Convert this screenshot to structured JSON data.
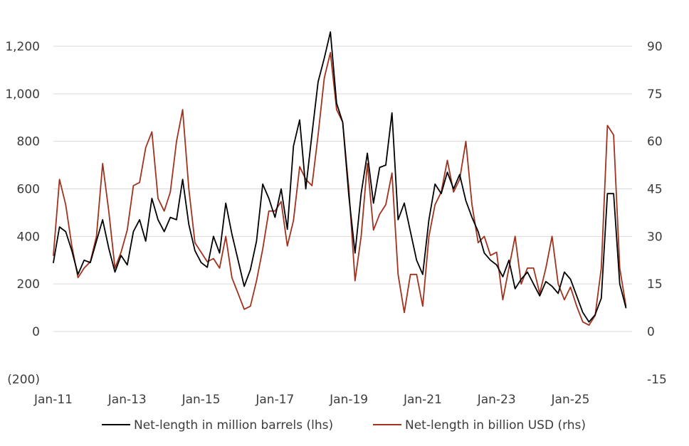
{
  "chart_data": {
    "type": "line",
    "title": "",
    "xlabel": "",
    "ylabel_left": "",
    "ylabel_right": "",
    "grid": true,
    "legend_position": "bottom",
    "x_range": [
      "2011-01",
      "2026-09"
    ],
    "x_ticks": [
      "Jan-11",
      "Jan-13",
      "Jan-15",
      "Jan-17",
      "Jan-19",
      "Jan-21",
      "Jan-23",
      "Jan-25"
    ],
    "y_left": {
      "range": [
        -200,
        1300
      ],
      "ticks": [
        -200,
        0,
        200,
        400,
        600,
        800,
        1000,
        1200
      ],
      "tick_labels": [
        "(200)",
        "0",
        "200",
        "400",
        "600",
        "800",
        "1,000",
        "1,200"
      ]
    },
    "y_right": {
      "range": [
        -15,
        97.5
      ],
      "ticks": [
        -15,
        0,
        15,
        30,
        45,
        60,
        75,
        90
      ],
      "tick_labels": [
        "-15",
        "0",
        "15",
        "30",
        "45",
        "60",
        "75",
        "90"
      ]
    },
    "series": [
      {
        "name": "Net-length in million barrels (lhs)",
        "axis": "left",
        "color": "#000000",
        "points": [
          [
            "2011-01",
            290
          ],
          [
            "2011-03",
            440
          ],
          [
            "2011-05",
            420
          ],
          [
            "2011-07",
            340
          ],
          [
            "2011-09",
            240
          ],
          [
            "2011-11",
            300
          ],
          [
            "2012-01",
            290
          ],
          [
            "2012-03",
            380
          ],
          [
            "2012-05",
            470
          ],
          [
            "2012-07",
            350
          ],
          [
            "2012-09",
            250
          ],
          [
            "2012-11",
            320
          ],
          [
            "2013-01",
            280
          ],
          [
            "2013-03",
            420
          ],
          [
            "2013-05",
            470
          ],
          [
            "2013-07",
            380
          ],
          [
            "2013-09",
            560
          ],
          [
            "2013-11",
            470
          ],
          [
            "2014-01",
            420
          ],
          [
            "2014-03",
            480
          ],
          [
            "2014-05",
            470
          ],
          [
            "2014-07",
            640
          ],
          [
            "2014-09",
            450
          ],
          [
            "2014-11",
            340
          ],
          [
            "2015-01",
            290
          ],
          [
            "2015-03",
            270
          ],
          [
            "2015-05",
            400
          ],
          [
            "2015-07",
            330
          ],
          [
            "2015-09",
            540
          ],
          [
            "2015-11",
            410
          ],
          [
            "2016-01",
            300
          ],
          [
            "2016-03",
            190
          ],
          [
            "2016-05",
            260
          ],
          [
            "2016-07",
            380
          ],
          [
            "2016-09",
            620
          ],
          [
            "2016-11",
            560
          ],
          [
            "2017-01",
            480
          ],
          [
            "2017-03",
            600
          ],
          [
            "2017-05",
            430
          ],
          [
            "2017-07",
            780
          ],
          [
            "2017-09",
            890
          ],
          [
            "2017-11",
            600
          ],
          [
            "2018-01",
            830
          ],
          [
            "2018-03",
            1050
          ],
          [
            "2018-05",
            1150
          ],
          [
            "2018-07",
            1260
          ],
          [
            "2018-09",
            960
          ],
          [
            "2018-11",
            880
          ],
          [
            "2019-01",
            570
          ],
          [
            "2019-03",
            330
          ],
          [
            "2019-05",
            580
          ],
          [
            "2019-07",
            750
          ],
          [
            "2019-09",
            540
          ],
          [
            "2019-11",
            690
          ],
          [
            "2020-01",
            700
          ],
          [
            "2020-03",
            920
          ],
          [
            "2020-05",
            470
          ],
          [
            "2020-07",
            540
          ],
          [
            "2020-09",
            420
          ],
          [
            "2020-11",
            300
          ],
          [
            "2021-01",
            240
          ],
          [
            "2021-03",
            470
          ],
          [
            "2021-05",
            620
          ],
          [
            "2021-07",
            580
          ],
          [
            "2021-09",
            670
          ],
          [
            "2021-11",
            600
          ],
          [
            "2022-01",
            660
          ],
          [
            "2022-03",
            550
          ],
          [
            "2022-05",
            480
          ],
          [
            "2022-07",
            420
          ],
          [
            "2022-09",
            330
          ],
          [
            "2022-11",
            300
          ],
          [
            "2023-01",
            280
          ],
          [
            "2023-03",
            230
          ],
          [
            "2023-05",
            300
          ],
          [
            "2023-07",
            180
          ],
          [
            "2023-09",
            220
          ],
          [
            "2023-11",
            250
          ],
          [
            "2024-01",
            200
          ],
          [
            "2024-03",
            150
          ],
          [
            "2024-05",
            210
          ],
          [
            "2024-07",
            190
          ],
          [
            "2024-09",
            160
          ],
          [
            "2024-11",
            250
          ],
          [
            "2025-01",
            220
          ],
          [
            "2025-03",
            150
          ],
          [
            "2025-05",
            80
          ],
          [
            "2025-07",
            40
          ],
          [
            "2025-09",
            70
          ],
          [
            "2025-11",
            140
          ],
          [
            "2026-01",
            580
          ],
          [
            "2026-03",
            580
          ],
          [
            "2026-05",
            200
          ],
          [
            "2026-07",
            100
          ]
        ]
      },
      {
        "name": "Net-length in billion USD (rhs)",
        "axis": "right",
        "color": "#a0321e",
        "points": [
          [
            "2011-01",
            24
          ],
          [
            "2011-03",
            48
          ],
          [
            "2011-05",
            40
          ],
          [
            "2011-07",
            27
          ],
          [
            "2011-09",
            17
          ],
          [
            "2011-11",
            20
          ],
          [
            "2012-01",
            22
          ],
          [
            "2012-03",
            30
          ],
          [
            "2012-05",
            53
          ],
          [
            "2012-07",
            38
          ],
          [
            "2012-09",
            20
          ],
          [
            "2012-11",
            25
          ],
          [
            "2013-01",
            32
          ],
          [
            "2013-03",
            46
          ],
          [
            "2013-05",
            47
          ],
          [
            "2013-07",
            58
          ],
          [
            "2013-09",
            63
          ],
          [
            "2013-11",
            42
          ],
          [
            "2014-01",
            38
          ],
          [
            "2014-03",
            44
          ],
          [
            "2014-05",
            60
          ],
          [
            "2014-07",
            70
          ],
          [
            "2014-09",
            45
          ],
          [
            "2014-11",
            28
          ],
          [
            "2015-01",
            25
          ],
          [
            "2015-03",
            22
          ],
          [
            "2015-05",
            23
          ],
          [
            "2015-07",
            20
          ],
          [
            "2015-09",
            30
          ],
          [
            "2015-11",
            17
          ],
          [
            "2016-01",
            12
          ],
          [
            "2016-03",
            7
          ],
          [
            "2016-05",
            8
          ],
          [
            "2016-07",
            16
          ],
          [
            "2016-09",
            26
          ],
          [
            "2016-11",
            38
          ],
          [
            "2017-01",
            38
          ],
          [
            "2017-03",
            41
          ],
          [
            "2017-05",
            27
          ],
          [
            "2017-07",
            35
          ],
          [
            "2017-09",
            52
          ],
          [
            "2017-11",
            48
          ],
          [
            "2018-01",
            46
          ],
          [
            "2018-03",
            62
          ],
          [
            "2018-05",
            80
          ],
          [
            "2018-07",
            88
          ],
          [
            "2018-09",
            70
          ],
          [
            "2018-11",
            66
          ],
          [
            "2019-01",
            45
          ],
          [
            "2019-03",
            16
          ],
          [
            "2019-05",
            30
          ],
          [
            "2019-07",
            53
          ],
          [
            "2019-09",
            32
          ],
          [
            "2019-11",
            37
          ],
          [
            "2020-01",
            40
          ],
          [
            "2020-03",
            50
          ],
          [
            "2020-05",
            18
          ],
          [
            "2020-07",
            6
          ],
          [
            "2020-09",
            18
          ],
          [
            "2020-11",
            18
          ],
          [
            "2021-01",
            8
          ],
          [
            "2021-03",
            30
          ],
          [
            "2021-05",
            40
          ],
          [
            "2021-07",
            44
          ],
          [
            "2021-09",
            54
          ],
          [
            "2021-11",
            44
          ],
          [
            "2022-01",
            48
          ],
          [
            "2022-03",
            60
          ],
          [
            "2022-05",
            40
          ],
          [
            "2022-07",
            28
          ],
          [
            "2022-09",
            30
          ],
          [
            "2022-11",
            24
          ],
          [
            "2023-01",
            25
          ],
          [
            "2023-03",
            10
          ],
          [
            "2023-05",
            20
          ],
          [
            "2023-07",
            30
          ],
          [
            "2023-09",
            15
          ],
          [
            "2023-11",
            20
          ],
          [
            "2024-01",
            20
          ],
          [
            "2024-03",
            12
          ],
          [
            "2024-05",
            20
          ],
          [
            "2024-07",
            30
          ],
          [
            "2024-09",
            15
          ],
          [
            "2024-11",
            10
          ],
          [
            "2025-01",
            14
          ],
          [
            "2025-03",
            8
          ],
          [
            "2025-05",
            3
          ],
          [
            "2025-07",
            2
          ],
          [
            "2025-09",
            5
          ],
          [
            "2025-11",
            20
          ],
          [
            "2026-01",
            65
          ],
          [
            "2026-03",
            62
          ],
          [
            "2026-05",
            20
          ],
          [
            "2026-07",
            8
          ]
        ]
      }
    ]
  }
}
